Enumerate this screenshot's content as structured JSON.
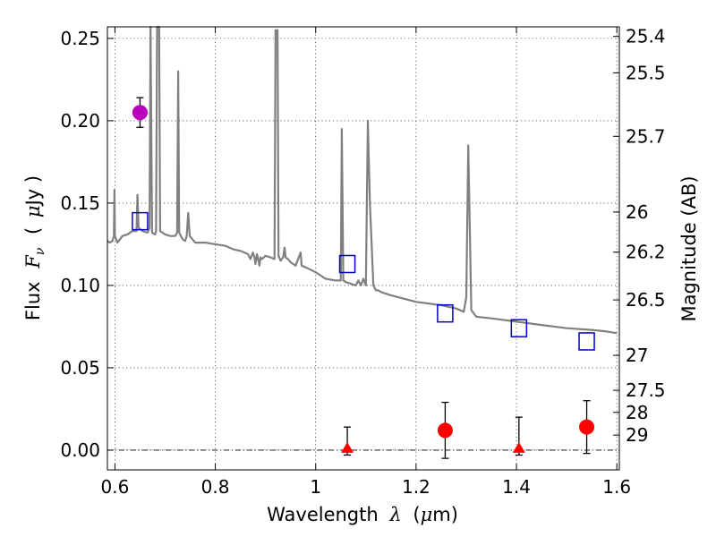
{
  "chart_data": {
    "type": "scatter",
    "xlabel_prefix": "Wavelength",
    "xlabel_symbol": "λ",
    "xlabel_unit_open": "(",
    "xlabel_unit_mu": "μ",
    "xlabel_unit_rest": "m)",
    "ylabel_prefix": "Flux",
    "ylabel_symbol": "F",
    "ylabel_sub": "ν",
    "ylabel_unit_open": "(",
    "ylabel_unit_mu": "μ",
    "ylabel_unit_rest": "Jy )",
    "y2label": "Magnitude (AB)",
    "xlim": [
      0.585,
      1.605
    ],
    "ylim": [
      -0.012,
      0.257
    ],
    "grid": true,
    "xticks": [
      {
        "value": 0.6,
        "label": "0.6"
      },
      {
        "value": 0.8,
        "label": "0.8"
      },
      {
        "value": 1.0,
        "label": "1"
      },
      {
        "value": 1.2,
        "label": "1.2"
      },
      {
        "value": 1.4,
        "label": "1.4"
      },
      {
        "value": 1.6,
        "label": "1.6"
      }
    ],
    "yticks": [
      {
        "value": 0.0,
        "label": "0.00"
      },
      {
        "value": 0.05,
        "label": "0.05"
      },
      {
        "value": 0.1,
        "label": "0.10"
      },
      {
        "value": 0.15,
        "label": "0.15"
      },
      {
        "value": 0.2,
        "label": "0.20"
      },
      {
        "value": 0.25,
        "label": "0.25"
      }
    ],
    "y2ticks": [
      {
        "mag": 25.4,
        "label": "25.4"
      },
      {
        "mag": 25.5,
        "label": "25.5"
      },
      {
        "mag": 25.7,
        "label": "25.7"
      },
      {
        "mag": 26.0,
        "label": "26"
      },
      {
        "mag": 26.2,
        "label": "26.2"
      },
      {
        "mag": 26.5,
        "label": "26.5"
      },
      {
        "mag": 27.0,
        "label": "27"
      },
      {
        "mag": 27.5,
        "label": "27.5"
      },
      {
        "mag": 28.0,
        "label": "28"
      },
      {
        "mag": 29.0,
        "label": "29"
      }
    ],
    "series": [
      {
        "name": "model spectrum",
        "kind": "line",
        "color": "#808080",
        "points": [
          [
            0.585,
            0.127
          ],
          [
            0.59,
            0.126
          ],
          [
            0.595,
            0.127
          ],
          [
            0.598,
            0.13
          ],
          [
            0.599,
            0.158
          ],
          [
            0.6,
            0.13
          ],
          [
            0.605,
            0.126
          ],
          [
            0.615,
            0.13
          ],
          [
            0.625,
            0.131
          ],
          [
            0.635,
            0.133
          ],
          [
            0.643,
            0.133
          ],
          [
            0.645,
            0.155
          ],
          [
            0.647,
            0.135
          ],
          [
            0.655,
            0.133
          ],
          [
            0.665,
            0.132
          ],
          [
            0.669,
            0.135
          ],
          [
            0.671,
            0.26
          ],
          [
            0.674,
            0.132
          ],
          [
            0.68,
            0.131
          ],
          [
            0.682,
            0.133
          ],
          [
            0.684,
            0.26
          ],
          [
            0.688,
            0.26
          ],
          [
            0.69,
            0.133
          ],
          [
            0.7,
            0.131
          ],
          [
            0.71,
            0.13
          ],
          [
            0.72,
            0.13
          ],
          [
            0.724,
            0.132
          ],
          [
            0.726,
            0.23
          ],
          [
            0.728,
            0.132
          ],
          [
            0.735,
            0.128
          ],
          [
            0.74,
            0.127
          ],
          [
            0.743,
            0.13
          ],
          [
            0.746,
            0.144
          ],
          [
            0.749,
            0.13
          ],
          [
            0.76,
            0.126
          ],
          [
            0.78,
            0.126
          ],
          [
            0.8,
            0.125
          ],
          [
            0.82,
            0.124
          ],
          [
            0.835,
            0.122
          ],
          [
            0.85,
            0.121
          ],
          [
            0.865,
            0.119
          ],
          [
            0.87,
            0.116
          ],
          [
            0.875,
            0.12
          ],
          [
            0.878,
            0.117
          ],
          [
            0.88,
            0.113
          ],
          [
            0.883,
            0.119
          ],
          [
            0.886,
            0.115
          ],
          [
            0.888,
            0.112
          ],
          [
            0.89,
            0.117
          ],
          [
            0.893,
            0.116
          ],
          [
            0.9,
            0.118
          ],
          [
            0.91,
            0.117
          ],
          [
            0.918,
            0.116
          ],
          [
            0.92,
            0.255
          ],
          [
            0.924,
            0.255
          ],
          [
            0.926,
            0.118
          ],
          [
            0.93,
            0.115
          ],
          [
            0.935,
            0.117
          ],
          [
            0.938,
            0.123
          ],
          [
            0.94,
            0.117
          ],
          [
            0.945,
            0.116
          ],
          [
            0.95,
            0.114
          ],
          [
            0.96,
            0.112
          ],
          [
            0.97,
            0.12
          ],
          [
            0.972,
            0.112
          ],
          [
            0.98,
            0.111
          ],
          [
            1.0,
            0.108
          ],
          [
            1.02,
            0.104
          ],
          [
            1.04,
            0.103
          ],
          [
            1.05,
            0.103
          ],
          [
            1.052,
            0.195
          ],
          [
            1.055,
            0.103
          ],
          [
            1.06,
            0.102
          ],
          [
            1.08,
            0.1
          ],
          [
            1.085,
            0.103
          ],
          [
            1.09,
            0.1
          ],
          [
            1.095,
            0.104
          ],
          [
            1.1,
            0.1
          ],
          [
            1.104,
            0.2
          ],
          [
            1.108,
            0.15
          ],
          [
            1.115,
            0.1
          ],
          [
            1.12,
            0.097
          ],
          [
            1.125,
            0.097
          ],
          [
            1.13,
            0.096
          ],
          [
            1.15,
            0.094
          ],
          [
            1.2,
            0.09
          ],
          [
            1.25,
            0.088
          ],
          [
            1.28,
            0.086
          ],
          [
            1.295,
            0.084
          ],
          [
            1.3,
            0.093
          ],
          [
            1.304,
            0.185
          ],
          [
            1.31,
            0.085
          ],
          [
            1.32,
            0.081
          ],
          [
            1.35,
            0.08
          ],
          [
            1.4,
            0.078
          ],
          [
            1.45,
            0.076
          ],
          [
            1.5,
            0.074
          ],
          [
            1.55,
            0.073
          ],
          [
            1.58,
            0.072
          ],
          [
            1.6,
            0.071
          ]
        ]
      },
      {
        "name": "model photometry",
        "kind": "open-square",
        "color": "#0000cc",
        "x": [
          0.65,
          1.063,
          1.258,
          1.405,
          1.54
        ],
        "y": [
          0.139,
          0.113,
          0.083,
          0.074,
          0.066
        ]
      },
      {
        "name": "detection (magenta)",
        "kind": "filled-circle",
        "color": "#bb00bb",
        "x": [
          0.65
        ],
        "y": [
          0.205
        ],
        "yerr": [
          0.009
        ]
      },
      {
        "name": "detections",
        "kind": "filled-circle",
        "color": "#ff0000",
        "x": [
          1.258,
          1.54
        ],
        "y": [
          0.012,
          0.014
        ],
        "yerr": [
          0.017,
          0.016
        ]
      },
      {
        "name": "upper limits",
        "kind": "filled-triangle",
        "color": "#ff0000",
        "x": [
          1.063,
          1.405
        ],
        "y": [
          0.0,
          0.0
        ],
        "yerr_up": [
          0.014,
          0.02
        ],
        "yerr_down": [
          0.003,
          0.003
        ]
      }
    ]
  }
}
